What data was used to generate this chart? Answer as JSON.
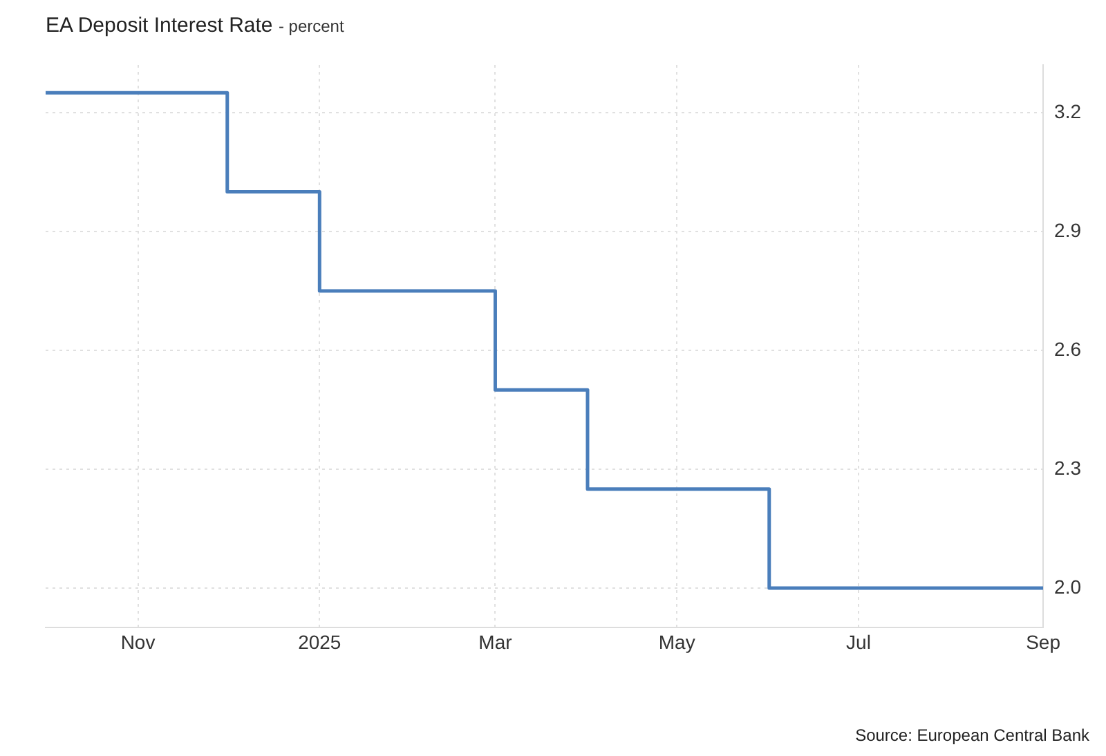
{
  "chart_data": {
    "type": "step",
    "title": "EA Deposit Interest Rate",
    "subtitle": "- percent",
    "annotations": [
      "Source: European Central Bank"
    ],
    "x": [
      "2024-10-01",
      "2024-11-01",
      "2024-12-01",
      "2025-01-01",
      "2025-02-01",
      "2025-03-01",
      "2025-04-01",
      "2025-05-01",
      "2025-06-01",
      "2025-07-01",
      "2025-08-01",
      "2025-09-01"
    ],
    "series": [
      {
        "color": "#4a7ebb",
        "values": [
          3.25,
          3.25,
          3.0,
          2.75,
          2.75,
          2.5,
          2.25,
          2.25,
          2.0,
          2.0,
          2.0,
          2.0
        ]
      }
    ],
    "xlim": [
      "2024-10-01",
      "2025-09-01"
    ],
    "xticks": [
      {
        "value": "2024-11-01",
        "label": "Nov"
      },
      {
        "value": "2025-01-01",
        "label": "2025"
      },
      {
        "value": "2025-03-01",
        "label": "Mar"
      },
      {
        "value": "2025-05-01",
        "label": "May"
      },
      {
        "value": "2025-07-01",
        "label": "Jul"
      },
      {
        "value": "2025-09-01",
        "label": "Sep"
      }
    ],
    "ylim": [
      1.9,
      3.32
    ],
    "yticks": [
      {
        "value": 2.0,
        "label": "2.0"
      },
      {
        "value": 2.3,
        "label": "2.3"
      },
      {
        "value": 2.6,
        "label": "2.6"
      },
      {
        "value": 2.9,
        "label": "2.9"
      },
      {
        "value": 3.2,
        "label": "3.2"
      }
    ],
    "grid": true,
    "legend": false,
    "marker": "none",
    "line_style": "solid"
  }
}
